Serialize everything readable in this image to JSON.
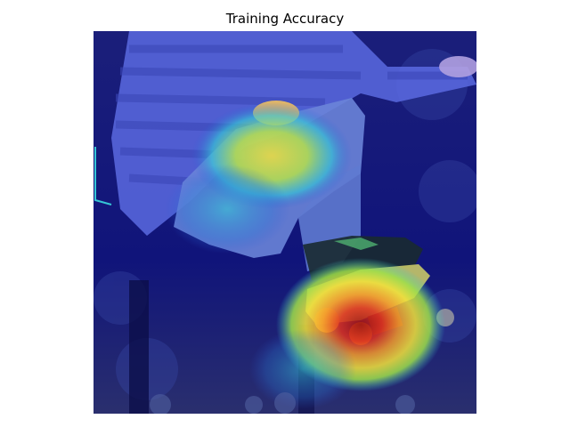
{
  "figure": {
    "title": "Training Accuracy"
  },
  "image": {
    "subject": "skateboarder mid-air with attention heatmap overlay",
    "colormap": "jet",
    "colors": {
      "background_low": "#1a1a8c",
      "mid_low": "#2a5bd6",
      "cyan": "#35c6d6",
      "green": "#9ee04a",
      "yellow": "#f3e33a",
      "orange": "#f59a2a",
      "high": "#d6201e"
    }
  }
}
